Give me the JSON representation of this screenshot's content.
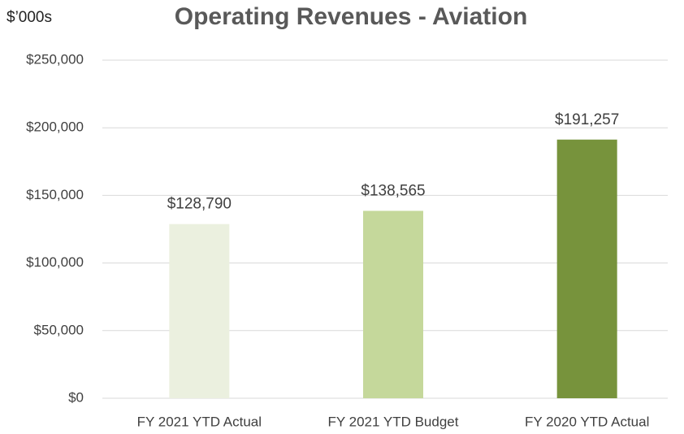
{
  "chart_data": {
    "type": "bar",
    "title": "Operating Revenues - Aviation",
    "y_unit_label": "$’000s",
    "categories": [
      "FY 2021 YTD Actual",
      "FY 2021 YTD Budget",
      "FY 2020 YTD Actual"
    ],
    "values": [
      128790,
      138565,
      191257
    ],
    "value_labels": [
      "$128,790",
      "$138,565",
      "$191,257"
    ],
    "colors": [
      "#ebf0df",
      "#c5d89b",
      "#77933c"
    ],
    "ylim": [
      0,
      250000
    ],
    "yticks": [
      {
        "value": 0,
        "label": "$0"
      },
      {
        "value": 50000,
        "label": "$50,000"
      },
      {
        "value": 100000,
        "label": "$100,000"
      },
      {
        "value": 150000,
        "label": "$150,000"
      },
      {
        "value": 200000,
        "label": "$200,000"
      },
      {
        "value": 250000,
        "label": "$250,000"
      }
    ],
    "grid": true
  }
}
